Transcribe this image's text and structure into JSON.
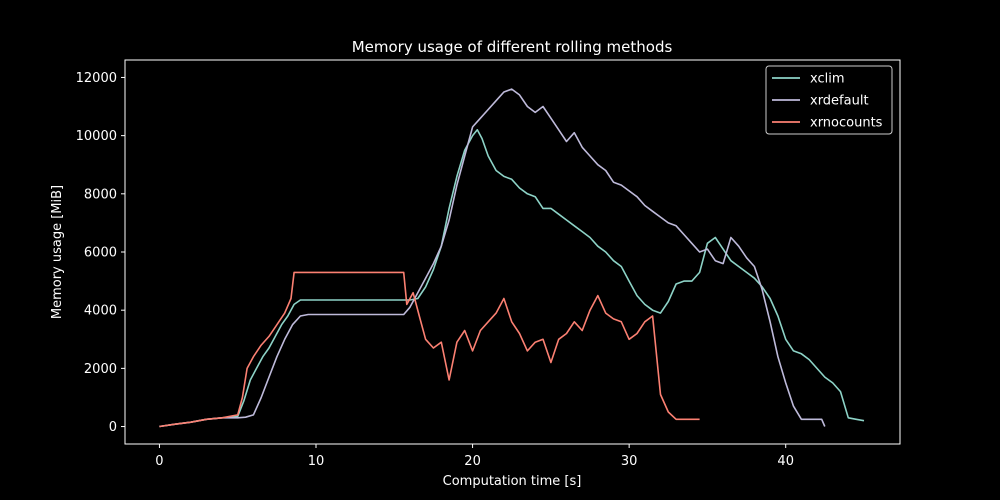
{
  "chart_data": {
    "type": "line",
    "title": "Memory usage of different rolling methods",
    "xlabel": "Computation time [s]",
    "ylabel": "Memory usage [MiB]",
    "xlim": [
      -2.2,
      47.3
    ],
    "ylim": [
      -600,
      12600
    ],
    "xticks": [
      0,
      10,
      20,
      30,
      40
    ],
    "xtick_labels": [
      "0",
      "10",
      "20",
      "30",
      "40"
    ],
    "yticks": [
      0,
      2000,
      4000,
      6000,
      8000,
      10000,
      12000
    ],
    "ytick_labels": [
      "0",
      "2000",
      "4000",
      "6000",
      "8000",
      "10000",
      "12000"
    ],
    "grid": false,
    "legend_position": "top-right",
    "background": "#000000",
    "foreground": "#ffffff",
    "series": [
      {
        "name": "xclim",
        "color": "#8dd3c7",
        "x": [
          0,
          1,
          2,
          3,
          4,
          5,
          5.4,
          5.8,
          6.2,
          6.6,
          7.0,
          7.4,
          7.8,
          8.2,
          8.6,
          9,
          10,
          12,
          14,
          15.6,
          16.0,
          16.5,
          17.0,
          17.5,
          18.0,
          18.5,
          19.0,
          19.5,
          20.0,
          20.3,
          20.6,
          21.0,
          21.5,
          22.0,
          22.5,
          23.0,
          23.5,
          24.0,
          24.5,
          25.0,
          25.5,
          26.0,
          26.5,
          27.0,
          27.5,
          28.0,
          28.5,
          29.0,
          29.5,
          30.0,
          30.5,
          31.0,
          31.5,
          32.0,
          32.5,
          33.0,
          33.5,
          34.0,
          34.5,
          35.0,
          35.5,
          36.0,
          36.5,
          37.0,
          37.5,
          38.0,
          38.5,
          39.0,
          39.5,
          40.0,
          40.5,
          41.0,
          41.5,
          42.0,
          42.5,
          43.0,
          43.5,
          44.0,
          44.5,
          45.0
        ],
        "y": [
          0,
          80,
          150,
          250,
          300,
          350,
          900,
          1600,
          2000,
          2400,
          2700,
          3100,
          3500,
          3800,
          4200,
          4350,
          4350,
          4350,
          4350,
          4350,
          4350,
          4400,
          4800,
          5400,
          6200,
          7500,
          8600,
          9500,
          10000,
          10200,
          9900,
          9300,
          8800,
          8600,
          8500,
          8200,
          8000,
          7900,
          7500,
          7500,
          7300,
          7100,
          6900,
          6700,
          6500,
          6200,
          6000,
          5700,
          5500,
          5000,
          4500,
          4200,
          4000,
          3900,
          4300,
          4900,
          5000,
          5000,
          5300,
          6300,
          6500,
          6100,
          5700,
          5500,
          5300,
          5100,
          4800,
          4400,
          3800,
          3000,
          2600,
          2500,
          2300,
          2000,
          1700,
          1500,
          1200,
          300,
          250,
          200
        ]
      },
      {
        "name": "xrdefault",
        "color": "#bebada",
        "x": [
          0,
          1,
          2,
          3,
          4,
          5,
          5.5,
          6.0,
          6.5,
          7.0,
          7.5,
          8.0,
          8.5,
          9.0,
          9.5,
          10,
          12,
          14,
          15.6,
          16.0,
          16.5,
          17.0,
          17.5,
          18.0,
          18.5,
          19.0,
          19.5,
          20.0,
          20.5,
          21.0,
          21.5,
          22.0,
          22.5,
          23.0,
          23.5,
          24.0,
          24.5,
          25.0,
          25.5,
          26.0,
          26.5,
          27.0,
          27.5,
          28.0,
          28.5,
          29.0,
          29.5,
          30.0,
          30.5,
          31.0,
          31.5,
          32.0,
          32.5,
          33.0,
          33.5,
          34.0,
          34.5,
          35.0,
          35.5,
          36.0,
          36.5,
          37.0,
          37.5,
          38.0,
          38.5,
          39.0,
          39.5,
          40.0,
          40.5,
          41.0,
          41.5,
          42.0,
          42.3,
          42.5
        ],
        "y": [
          0,
          80,
          150,
          250,
          300,
          300,
          320,
          400,
          1000,
          1700,
          2400,
          3000,
          3500,
          3800,
          3850,
          3850,
          3850,
          3850,
          3850,
          4100,
          4600,
          5100,
          5600,
          6200,
          7100,
          8300,
          9300,
          10300,
          10600,
          10900,
          11200,
          11500,
          11600,
          11400,
          11000,
          10800,
          11000,
          10600,
          10200,
          9800,
          10100,
          9600,
          9300,
          9000,
          8800,
          8400,
          8300,
          8100,
          7900,
          7600,
          7400,
          7200,
          7000,
          6900,
          6600,
          6300,
          6000,
          6100,
          5700,
          5600,
          6500,
          6200,
          5800,
          5500,
          4700,
          3600,
          2400,
          1500,
          700,
          250,
          250,
          250,
          250,
          0
        ]
      },
      {
        "name": "xrnocounts",
        "color": "#fb8072",
        "x": [
          0,
          1,
          2,
          3,
          4,
          5,
          5.3,
          5.6,
          6.0,
          6.5,
          7.0,
          7.5,
          8.0,
          8.4,
          8.6,
          9,
          10,
          12,
          14,
          15.6,
          15.8,
          16.2,
          16.6,
          17.0,
          17.5,
          18.0,
          18.5,
          19.0,
          19.5,
          20.0,
          20.5,
          21.0,
          21.5,
          22.0,
          22.5,
          23.0,
          23.5,
          24.0,
          24.5,
          25.0,
          25.5,
          26.0,
          26.5,
          27.0,
          27.5,
          28.0,
          28.5,
          29.0,
          29.5,
          30.0,
          30.5,
          31.0,
          31.5,
          32.0,
          32.5,
          33.0,
          34.0,
          34.5
        ],
        "y": [
          0,
          80,
          150,
          250,
          300,
          400,
          1000,
          2000,
          2400,
          2800,
          3100,
          3500,
          3900,
          4400,
          5300,
          5300,
          5300,
          5300,
          5300,
          5300,
          4200,
          4600,
          3800,
          3000,
          2700,
          2900,
          1600,
          2900,
          3300,
          2600,
          3300,
          3600,
          3900,
          4400,
          3600,
          3200,
          2600,
          2900,
          3000,
          2200,
          3000,
          3200,
          3600,
          3300,
          4000,
          4500,
          3900,
          3700,
          3600,
          3000,
          3200,
          3600,
          3800,
          1100,
          500,
          250,
          250,
          250
        ]
      }
    ]
  }
}
